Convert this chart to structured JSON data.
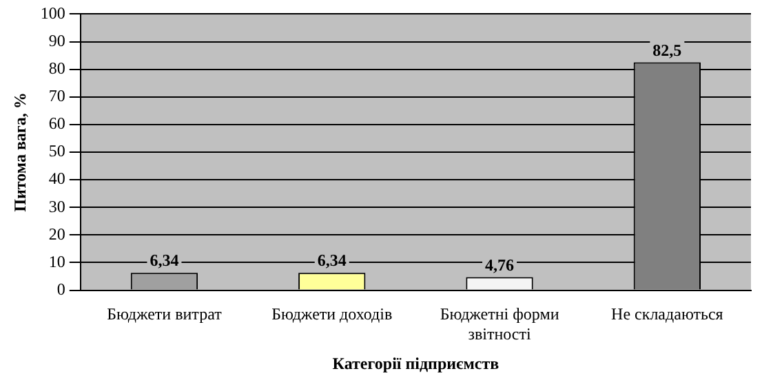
{
  "chart_data": {
    "type": "bar",
    "xlabel": "Категорії підприємств",
    "ylabel": "Питома вага, %",
    "categories": [
      "Бюджети витрат",
      "Бюджети доходів",
      "Бюджетні форми звітності",
      "Не складаються"
    ],
    "values": [
      6.34,
      6.34,
      4.76,
      82.5
    ],
    "colors": [
      "#a0a0a0",
      "#ffff99",
      "#f4f4f4",
      "#808080"
    ],
    "value_labels": [
      "6,34",
      "6,34",
      "4,76",
      "82,5"
    ],
    "ylim": [
      0,
      100
    ],
    "yticks": [
      0,
      10,
      20,
      30,
      40,
      50,
      60,
      70,
      80,
      90,
      100
    ],
    "grid": "y",
    "legend": false
  }
}
